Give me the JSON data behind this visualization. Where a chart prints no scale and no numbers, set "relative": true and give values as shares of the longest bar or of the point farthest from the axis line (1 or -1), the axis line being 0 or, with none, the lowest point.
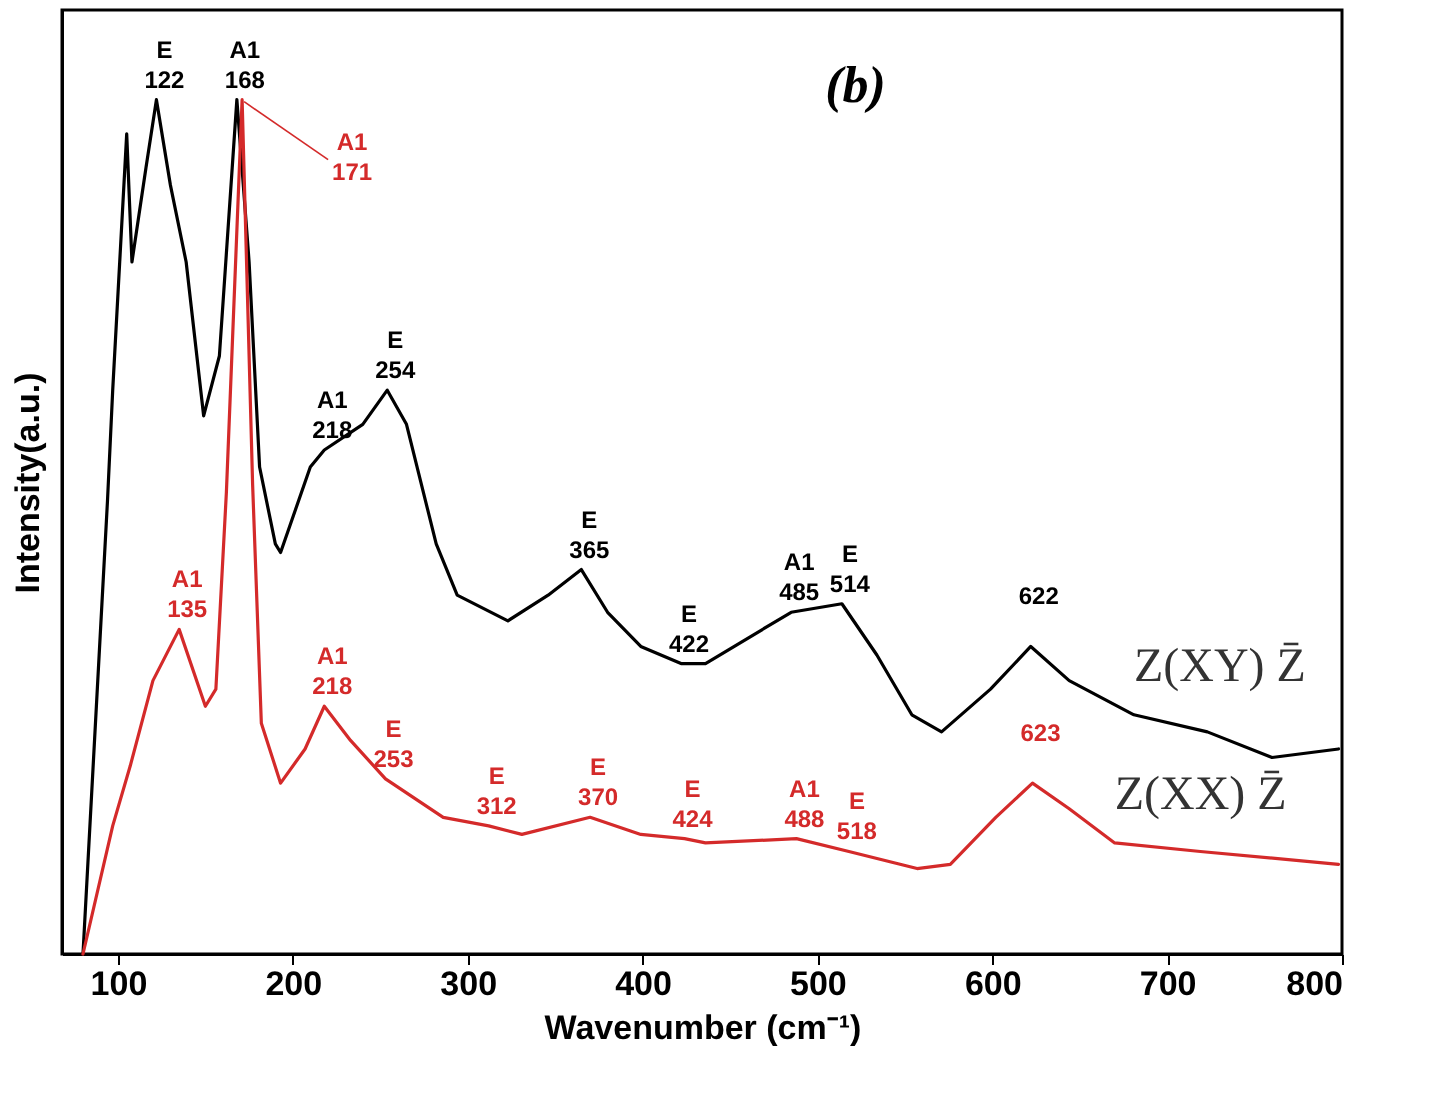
{
  "chart_data": {
    "type": "line",
    "title": "(b)",
    "xlabel": "Wavenumber (cm⁻¹)",
    "ylabel": "Intensity(a.u.)",
    "relative": true,
    "grid": false,
    "marker": "none",
    "line_style": "solid",
    "xlim": [
      68,
      800
    ],
    "xticks": [
      100,
      200,
      300,
      400,
      500,
      600,
      700,
      800
    ],
    "series": [
      {
        "name": "Z(XY) Z̄",
        "color": "#000000",
        "x": [
          80,
          94,
          97,
          105,
          108,
          116,
          122,
          130,
          139,
          149,
          158,
          164,
          168,
          175,
          181,
          190,
          193,
          210,
          218,
          240,
          254,
          265,
          282,
          294,
          323,
          346,
          365,
          380,
          399,
          422,
          436,
          485,
          514,
          534,
          554,
          571,
          599,
          622,
          644,
          681,
          723,
          760,
          798
        ],
        "values": [
          0,
          0.53,
          0.66,
          0.96,
          0.81,
          0.92,
          1.0,
          0.9,
          0.81,
          0.63,
          0.7,
          0.88,
          1.0,
          0.81,
          0.57,
          0.48,
          0.47,
          0.57,
          0.59,
          0.62,
          0.66,
          0.62,
          0.48,
          0.42,
          0.39,
          0.42,
          0.45,
          0.4,
          0.36,
          0.34,
          0.34,
          0.4,
          0.41,
          0.35,
          0.28,
          0.26,
          0.31,
          0.36,
          0.32,
          0.28,
          0.26,
          0.23,
          0.24
        ]
      },
      {
        "name": "Z(XX) Z̄",
        "color": "#d42a2a",
        "x": [
          80,
          97,
          107,
          120,
          135,
          150,
          156,
          162,
          171,
          177,
          182,
          193,
          207,
          218,
          233,
          253,
          286,
          312,
          331,
          370,
          399,
          424,
          436,
          488,
          518,
          557,
          576,
          602,
          623,
          644,
          670,
          719,
          798
        ],
        "values": [
          0,
          0.15,
          0.22,
          0.32,
          0.38,
          0.29,
          0.31,
          0.54,
          1.0,
          0.55,
          0.27,
          0.2,
          0.24,
          0.29,
          0.25,
          0.205,
          0.16,
          0.15,
          0.14,
          0.16,
          0.14,
          0.135,
          0.13,
          0.135,
          0.12,
          0.1,
          0.105,
          0.16,
          0.2,
          0.17,
          0.13,
          0.12,
          0.105
        ]
      }
    ],
    "annotations": [
      {
        "text": "E\n122",
        "x": 122,
        "y": 1.0
      },
      {
        "text": "A1\n168",
        "x": 168,
        "y": 1.0
      },
      {
        "text": "A1\n171",
        "x": 171,
        "y": 1.0
      },
      {
        "text": "A1\n218",
        "x": 218,
        "y": 0.59
      },
      {
        "text": "E\n254",
        "x": 254,
        "y": 0.66
      },
      {
        "text": "E\n365",
        "x": 365,
        "y": 0.45
      },
      {
        "text": "E\n422",
        "x": 422,
        "y": 0.34
      },
      {
        "text": "A1\n485",
        "x": 485,
        "y": 0.4
      },
      {
        "text": "E\n514",
        "x": 514,
        "y": 0.41
      },
      {
        "text": "622",
        "x": 622,
        "y": 0.36
      },
      {
        "text": "A1\n135",
        "x": 135,
        "y": 0.38
      },
      {
        "text": "A1\n218",
        "x": 218,
        "y": 0.29
      },
      {
        "text": "E\n253",
        "x": 253,
        "y": 0.205
      },
      {
        "text": "E\n312",
        "x": 312,
        "y": 0.15
      },
      {
        "text": "E\n370",
        "x": 370,
        "y": 0.16
      },
      {
        "text": "E\n424",
        "x": 424,
        "y": 0.135
      },
      {
        "text": "A1\n488",
        "x": 488,
        "y": 0.135
      },
      {
        "text": "E\n518",
        "x": 518,
        "y": 0.12
      },
      {
        "text": "623",
        "x": 623,
        "y": 0.2
      }
    ]
  }
}
